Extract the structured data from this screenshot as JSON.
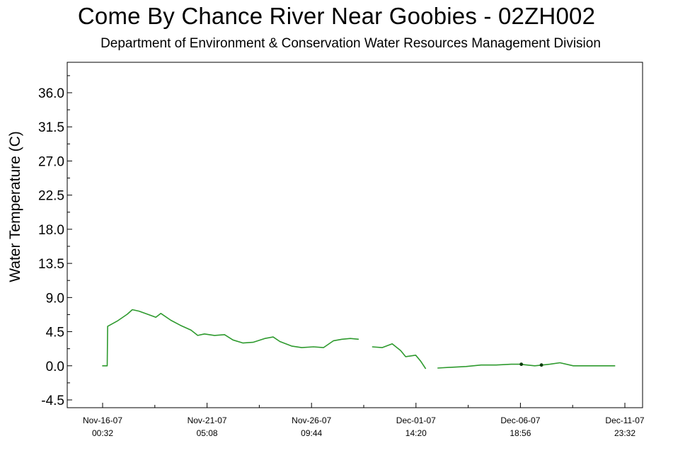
{
  "chart_data": {
    "type": "line",
    "title": "Come By Chance River Near Goobies - 02ZH002",
    "subtitle": "Department of Environment & Conservation Water Resources Management Division",
    "xlabel": "",
    "ylabel": "Water Temperature (C)",
    "ylim": [
      -4.5,
      36.0
    ],
    "yticks": [
      "-4.5",
      "0.0",
      "4.5",
      "9.0",
      "13.5",
      "18.0",
      "22.5",
      "27.0",
      "31.5",
      "36.0"
    ],
    "xticks": [
      {
        "date": "Nov-16-07",
        "time": "00:32"
      },
      {
        "date": "Nov-21-07",
        "time": "05:08"
      },
      {
        "date": "Nov-26-07",
        "time": "09:44"
      },
      {
        "date": "Dec-01-07",
        "time": "14:20"
      },
      {
        "date": "Dec-06-07",
        "time": "18:56"
      },
      {
        "date": "Dec-11-07",
        "time": "23:32"
      }
    ],
    "grid": false,
    "line_color": "#2e9a2e",
    "marker_color": "#0b3d0b",
    "series": [
      {
        "name": "",
        "segments": [
          [
            [
              "Nov-16-07 00:00",
              0.0
            ],
            [
              "Nov-16-07 06:00",
              0.0
            ],
            [
              "Nov-16-07 06:30",
              5.2
            ],
            [
              "Nov-16-07 18:00",
              5.9
            ],
            [
              "Nov-17-07 06:00",
              6.8
            ],
            [
              "Nov-17-07 12:00",
              7.4
            ],
            [
              "Nov-17-07 20:00",
              7.2
            ],
            [
              "Nov-18-07 06:00",
              6.8
            ],
            [
              "Nov-18-07 16:00",
              6.4
            ],
            [
              "Nov-18-07 22:00",
              6.9
            ],
            [
              "Nov-19-07 10:00",
              6.0
            ],
            [
              "Nov-19-07 22:00",
              5.3
            ],
            [
              "Nov-20-07 10:00",
              4.7
            ],
            [
              "Nov-20-07 18:00",
              4.0
            ],
            [
              "Nov-21-07 02:00",
              4.2
            ],
            [
              "Nov-21-07 14:00",
              4.0
            ],
            [
              "Nov-22-07 02:00",
              4.1
            ],
            [
              "Nov-22-07 12:00",
              3.4
            ],
            [
              "Nov-23-07 00:00",
              3.0
            ],
            [
              "Nov-23-07 12:00",
              3.1
            ],
            [
              "Nov-24-07 02:00",
              3.6
            ],
            [
              "Nov-24-07 12:00",
              3.8
            ],
            [
              "Nov-24-07 20:00",
              3.2
            ],
            [
              "Nov-25-07 10:00",
              2.6
            ],
            [
              "Nov-25-07 22:00",
              2.4
            ],
            [
              "Nov-26-07 12:00",
              2.5
            ],
            [
              "Nov-27-07 00:00",
              2.4
            ],
            [
              "Nov-27-07 12:00",
              3.3
            ],
            [
              "Nov-27-07 22:00",
              3.5
            ],
            [
              "Nov-28-07 08:00",
              3.6
            ],
            [
              "Nov-28-07 18:00",
              3.5
            ]
          ],
          [
            [
              "Nov-29-07 10:00",
              2.5
            ],
            [
              "Nov-29-07 22:00",
              2.4
            ],
            [
              "Nov-30-07 10:00",
              2.9
            ],
            [
              "Nov-30-07 20:00",
              2.0
            ],
            [
              "Dec-01-07 02:00",
              1.2
            ],
            [
              "Dec-01-07 14:00",
              1.4
            ],
            [
              "Dec-01-07 20:00",
              0.6
            ],
            [
              "Dec-02-07 02:00",
              -0.4
            ]
          ],
          [
            [
              "Dec-02-07 16:00",
              -0.3
            ],
            [
              "Dec-03-07 08:00",
              -0.2
            ],
            [
              "Dec-04-07 02:00",
              -0.1
            ],
            [
              "Dec-04-07 20:00",
              0.1
            ],
            [
              "Dec-05-07 14:00",
              0.1
            ],
            [
              "Dec-06-07 08:00",
              0.2
            ],
            [
              "Dec-06-07 18:00",
              0.2
            ],
            [
              "Dec-07-07 12:00",
              0.0
            ],
            [
              "Dec-08-07 06:00",
              0.2
            ],
            [
              "Dec-08-07 18:00",
              0.4
            ],
            [
              "Dec-09-07 10:00",
              0.0
            ],
            [
              "Dec-10-07 02:00",
              0.0
            ],
            [
              "Dec-10-07 18:00",
              0.0
            ],
            [
              "Dec-11-07 12:00",
              0.0
            ]
          ]
        ]
      }
    ]
  }
}
